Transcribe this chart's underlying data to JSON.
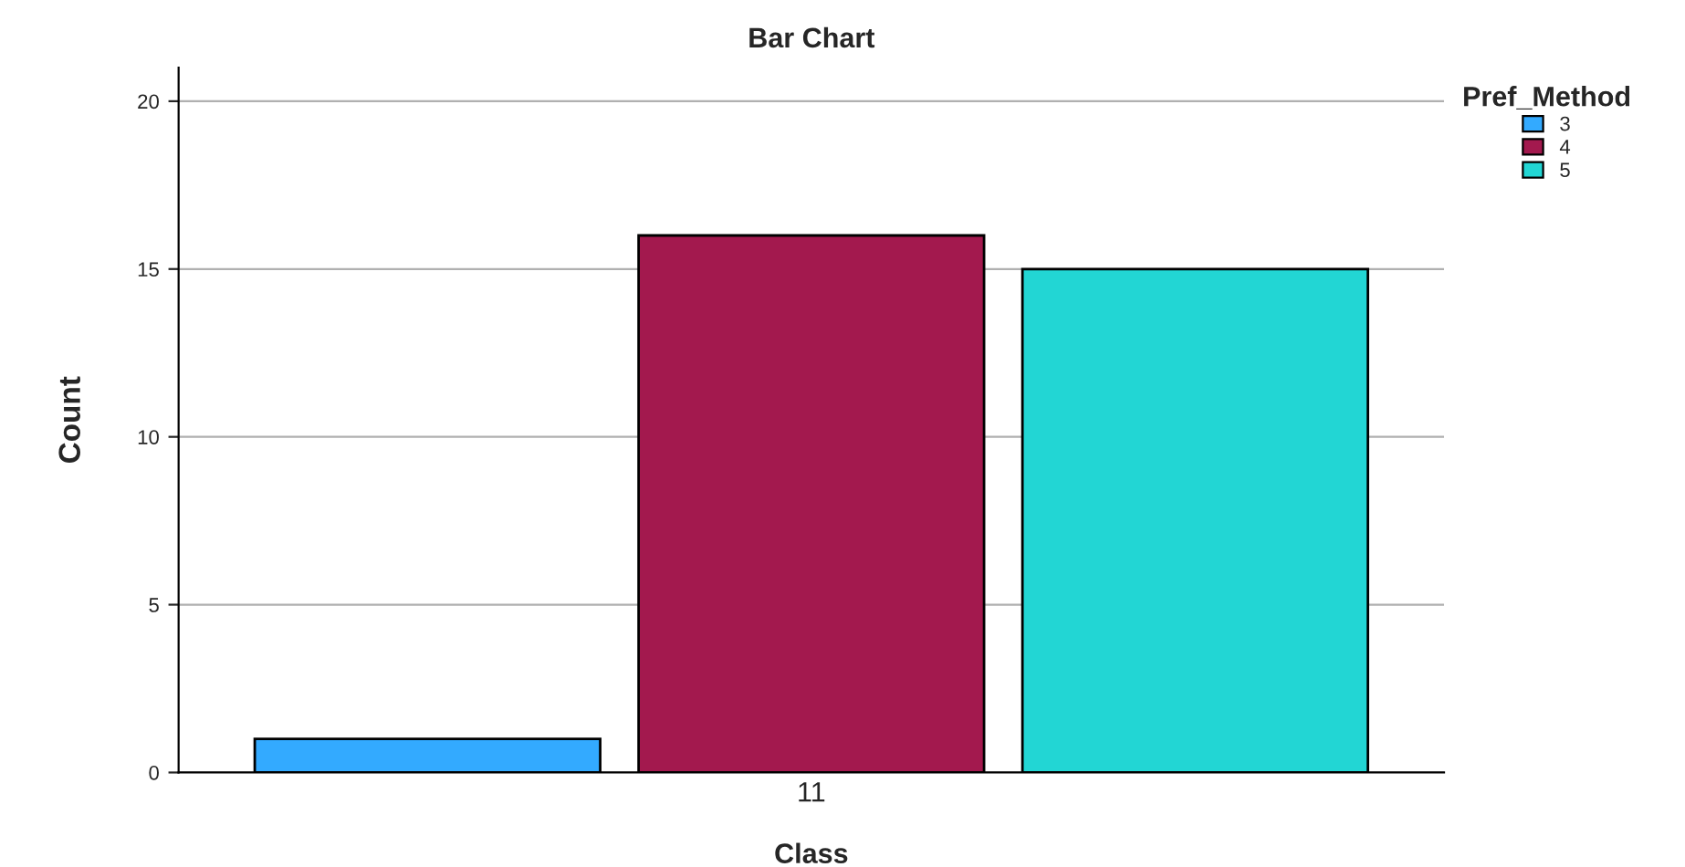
{
  "chart_data": {
    "type": "bar",
    "title": "Bar Chart",
    "xlabel": "Class",
    "ylabel": "Count",
    "legend_title": "Pref_Method",
    "categories": [
      "11"
    ],
    "series": [
      {
        "name": "3",
        "color": "#33aaff",
        "values": [
          1
        ]
      },
      {
        "name": "4",
        "color": "#a3194e",
        "values": [
          16
        ]
      },
      {
        "name": "5",
        "color": "#22d6d4",
        "values": [
          15
        ]
      }
    ],
    "ylim": [
      0,
      21
    ],
    "yticks": [
      0,
      5,
      10,
      15,
      20
    ],
    "grid": "y",
    "legend": "top right"
  }
}
